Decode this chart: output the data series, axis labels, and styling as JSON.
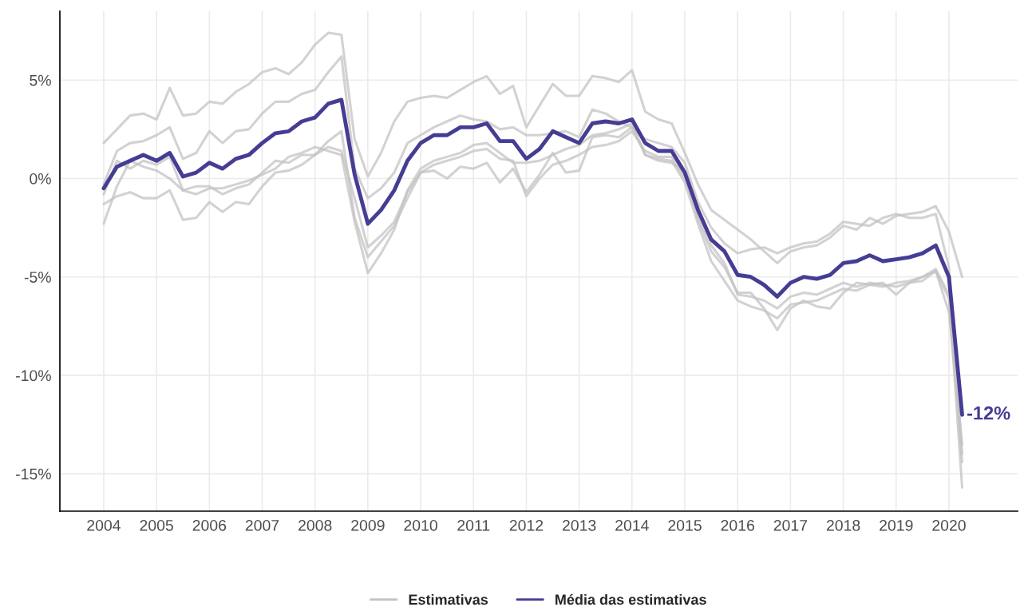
{
  "chart_data": {
    "type": "line",
    "x": [
      2004,
      2004.25,
      2004.5,
      2004.75,
      2005,
      2005.25,
      2005.5,
      2005.75,
      2006,
      2006.25,
      2006.5,
      2006.75,
      2007,
      2007.25,
      2007.5,
      2007.75,
      2008,
      2008.25,
      2008.5,
      2008.75,
      2009,
      2009.25,
      2009.5,
      2009.75,
      2010,
      2010.25,
      2010.5,
      2010.75,
      2011,
      2011.25,
      2011.5,
      2011.75,
      2012,
      2012.25,
      2012.5,
      2012.75,
      2013,
      2013.25,
      2013.5,
      2013.75,
      2014,
      2014.25,
      2014.5,
      2014.75,
      2015,
      2015.25,
      2015.5,
      2015.75,
      2016,
      2016.25,
      2016.5,
      2016.75,
      2017,
      2017.25,
      2017.5,
      2017.75,
      2018,
      2018.25,
      2018.5,
      2018.75,
      2019,
      2019.25,
      2019.5,
      2019.75,
      2020,
      2020.25
    ],
    "series": [
      {
        "name": "Estimativas",
        "color": "#c4c2c2",
        "values": [
          1.8,
          2.5,
          3.2,
          3.3,
          3.0,
          4.6,
          3.2,
          3.3,
          3.9,
          3.8,
          4.4,
          4.8,
          5.4,
          5.6,
          5.3,
          5.9,
          6.8,
          7.4,
          7.3,
          2.0,
          0.1,
          1.3,
          2.9,
          3.9,
          4.1,
          4.2,
          4.1,
          4.5,
          4.9,
          5.2,
          4.3,
          4.7,
          2.6,
          3.7,
          4.8,
          4.2,
          4.2,
          5.2,
          5.1,
          4.9,
          5.5,
          3.4,
          3.0,
          2.8,
          1.3,
          -0.3,
          -1.6,
          -2.1,
          -2.6,
          -3.1,
          -3.7,
          -4.3,
          -3.7,
          -3.5,
          -3.4,
          -3.0,
          -2.4,
          -2.6,
          -2.0,
          -2.3,
          -1.9,
          -1.8,
          -1.7,
          -1.4,
          -2.7,
          -5.0
        ]
      },
      {
        "color": "#c4c2c2",
        "values": [
          -0.3,
          1.4,
          1.8,
          1.9,
          2.2,
          2.6,
          1.0,
          1.3,
          2.4,
          1.8,
          2.4,
          2.5,
          3.3,
          3.9,
          3.9,
          4.3,
          4.5,
          5.4,
          6.2,
          0.5,
          -1.0,
          -0.5,
          0.3,
          1.8,
          2.2,
          2.6,
          2.9,
          3.2,
          3.0,
          2.9,
          2.5,
          2.6,
          2.2,
          2.2,
          2.3,
          2.4,
          2.1,
          3.5,
          3.3,
          2.9,
          2.6,
          2.0,
          1.8,
          1.6,
          0.8,
          -1.2,
          -2.5,
          -3.3,
          -3.8,
          -3.6,
          -3.5,
          -3.8,
          -3.5,
          -3.3,
          -3.2,
          -2.8,
          -2.2,
          -2.3,
          -2.4,
          -2.0,
          -1.8,
          -2.0,
          -2.0,
          -1.8,
          -4.5,
          -14.0
        ]
      },
      {
        "color": "#c4c2c2",
        "values": [
          -0.8,
          0.9,
          0.5,
          0.9,
          0.7,
          1.1,
          -0.6,
          -0.4,
          -0.4,
          -0.8,
          -0.5,
          -0.3,
          0.3,
          0.9,
          0.8,
          1.2,
          1.2,
          1.6,
          1.4,
          -1.0,
          -3.5,
          -2.9,
          -2.2,
          -0.7,
          0.3,
          0.7,
          0.9,
          1.1,
          1.4,
          1.5,
          1.0,
          0.9,
          -0.9,
          0.0,
          0.7,
          0.9,
          1.2,
          1.6,
          1.7,
          1.9,
          2.4,
          1.4,
          1.1,
          1.1,
          0.0,
          -1.9,
          -3.4,
          -4.3,
          -5.9,
          -6.0,
          -6.2,
          -6.6,
          -6.0,
          -5.8,
          -5.9,
          -5.6,
          -5.3,
          -5.5,
          -5.3,
          -5.4,
          -5.5,
          -5.3,
          -5.2,
          -4.7,
          -6.8,
          -13.5
        ]
      },
      {
        "color": "#c4c2c2",
        "values": [
          -1.3,
          -0.9,
          -0.7,
          -1.0,
          -1.0,
          -0.6,
          -2.1,
          -2.0,
          -1.2,
          -1.7,
          -1.2,
          -1.3,
          -0.4,
          0.3,
          0.4,
          0.7,
          1.2,
          1.9,
          2.4,
          -2.0,
          -4.0,
          -3.2,
          -2.4,
          -1.0,
          0.3,
          0.4,
          0.0,
          0.6,
          0.5,
          0.8,
          -0.2,
          0.5,
          -0.7,
          0.2,
          1.3,
          0.3,
          0.4,
          2.1,
          2.2,
          2.1,
          2.6,
          1.2,
          0.9,
          0.8,
          0.3,
          -2.1,
          -3.7,
          -4.5,
          -5.8,
          -5.8,
          -6.6,
          -7.7,
          -6.6,
          -6.2,
          -6.5,
          -6.6,
          -5.8,
          -5.3,
          -5.4,
          -5.3,
          -5.9,
          -5.3,
          -5.0,
          -4.6,
          -5.9,
          -15.7
        ]
      },
      {
        "color": "#c4c2c2",
        "values": [
          -2.3,
          -0.4,
          0.9,
          0.6,
          0.4,
          0.0,
          -0.6,
          -0.8,
          -0.5,
          -0.5,
          -0.3,
          -0.1,
          0.2,
          0.5,
          1.1,
          1.3,
          1.6,
          1.4,
          1.2,
          -2.2,
          -4.8,
          -3.8,
          -2.6,
          -0.6,
          0.5,
          0.9,
          1.1,
          1.3,
          1.7,
          1.8,
          1.3,
          0.8,
          0.8,
          0.9,
          1.2,
          1.5,
          1.7,
          2.2,
          2.3,
          2.5,
          2.8,
          1.2,
          1.0,
          0.9,
          -0.2,
          -2.3,
          -4.2,
          -5.2,
          -6.2,
          -6.5,
          -6.7,
          -7.1,
          -6.4,
          -6.3,
          -6.2,
          -5.9,
          -5.6,
          -5.7,
          -5.4,
          -5.5,
          -5.3,
          -5.2,
          -5.0,
          -4.7,
          -6.1,
          -14.4
        ]
      },
      {
        "name": "Média das estimativas",
        "color": "#453d94",
        "values": [
          -0.5,
          0.6,
          0.9,
          1.2,
          0.9,
          1.3,
          0.1,
          0.3,
          0.8,
          0.5,
          1.0,
          1.2,
          1.8,
          2.3,
          2.4,
          2.9,
          3.1,
          3.8,
          4.0,
          0.2,
          -2.3,
          -1.6,
          -0.6,
          0.9,
          1.8,
          2.2,
          2.2,
          2.6,
          2.6,
          2.8,
          1.9,
          1.9,
          1.0,
          1.5,
          2.4,
          2.1,
          1.8,
          2.8,
          2.9,
          2.8,
          3.0,
          1.8,
          1.4,
          1.4,
          0.3,
          -1.6,
          -3.1,
          -3.7,
          -4.9,
          -5.0,
          -5.4,
          -6.0,
          -5.3,
          -5.0,
          -5.1,
          -4.9,
          -4.3,
          -4.2,
          -3.9,
          -4.2,
          -4.1,
          -4.0,
          -3.8,
          -3.4,
          -5.0,
          -12.0
        ]
      }
    ],
    "annotations": [
      {
        "text": "-12%",
        "x": 2020.25,
        "y": -12
      }
    ],
    "xlim": [
      2003.17,
      2021.3
    ],
    "xticks": [
      2004,
      2005,
      2006,
      2007,
      2008,
      2009,
      2010,
      2011,
      2012,
      2013,
      2014,
      2015,
      2016,
      2017,
      2018,
      2019,
      2020
    ],
    "ylim": [
      -16.9,
      8.5
    ],
    "yticks": [
      {
        "value": -15,
        "label": "-15%"
      },
      {
        "value": -10,
        "label": "-10%"
      },
      {
        "value": -5,
        "label": "-5%"
      },
      {
        "value": 0,
        "label": "0%"
      },
      {
        "value": 5,
        "label": "5%"
      }
    ],
    "grid": true,
    "legend": "bottom",
    "line_style": "solid"
  }
}
